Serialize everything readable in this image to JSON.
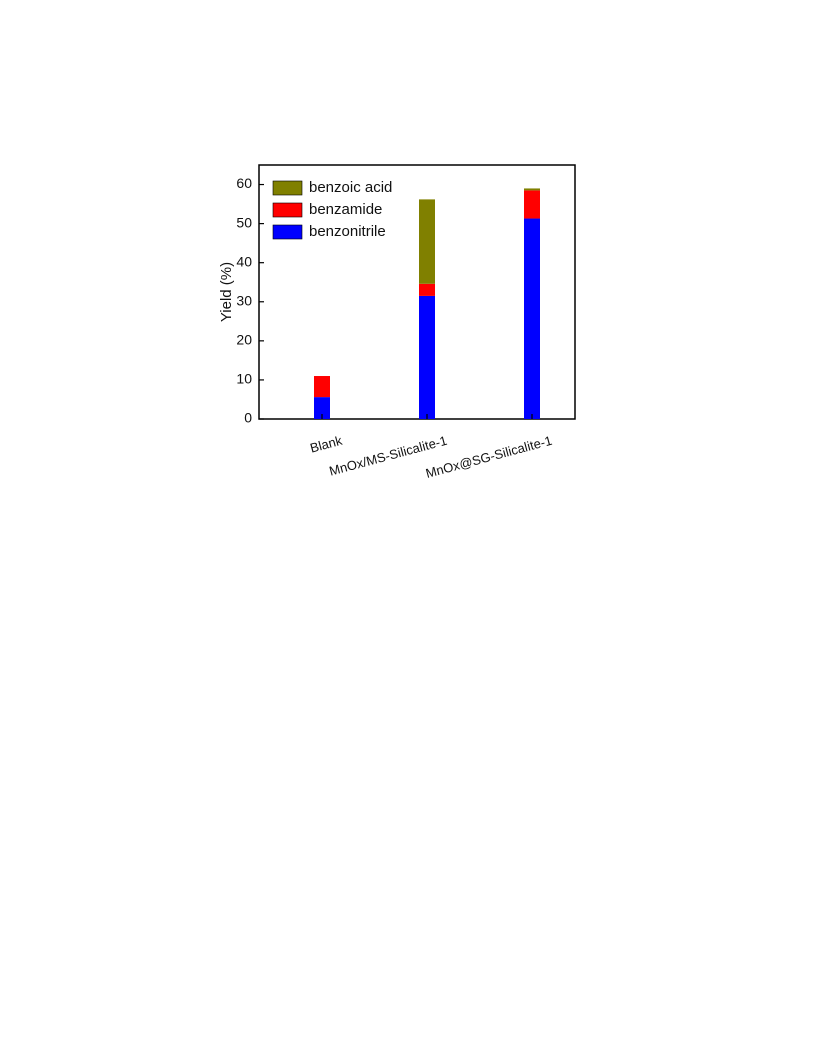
{
  "chart_data": {
    "type": "stacked_bar",
    "y_label": "Yield (%)",
    "categories": [
      "Blank",
      "MnOx/MS-Silicalite-1",
      "MnOx@SG-Silicalite-1"
    ],
    "series": [
      {
        "name": "benzonitrile",
        "color": "#0000ff",
        "values": [
          5.6,
          31.5,
          51.3
        ]
      },
      {
        "name": "benzamide",
        "color": "#ff0000",
        "values": [
          5.4,
          3.1,
          7.2
        ]
      },
      {
        "name": "benzoic acid",
        "color": "#808000",
        "values": [
          0,
          21.6,
          0.5
        ]
      }
    ],
    "ylim": [
      0,
      65
    ],
    "yticks": [
      0,
      10,
      20,
      30,
      40,
      50,
      60
    ],
    "legend": "upper left"
  }
}
